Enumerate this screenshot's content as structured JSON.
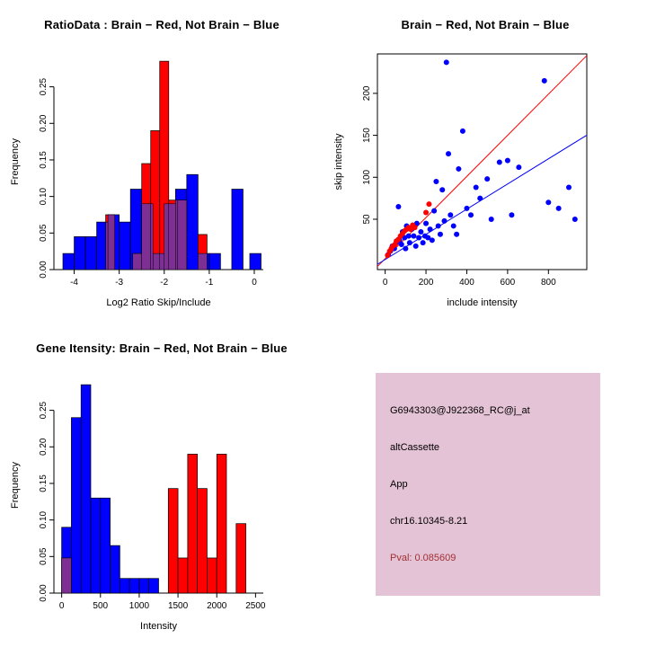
{
  "colors": {
    "blue": "#0000ff",
    "red": "#ff0000",
    "overlap": "#7d2f94",
    "axis": "#000000"
  },
  "chart_data": [
    {
      "type": "bar",
      "variant": "overlaid-histogram",
      "title": "RatioData : Brain − Red, Not Brain − Blue",
      "xlabel": "Log2 Ratio Skip/Include",
      "ylabel": "Frequency",
      "xlim": [
        -4.45,
        0.2
      ],
      "ylim": [
        0,
        0.295
      ],
      "grid": false,
      "xticks": [
        {
          "v": -4,
          "label": "-4"
        },
        {
          "v": -3,
          "label": "-3"
        },
        {
          "v": -2,
          "label": "-2"
        },
        {
          "v": -1,
          "label": "-1"
        },
        {
          "v": 0,
          "label": "0"
        }
      ],
      "yticks": [
        {
          "v": 0,
          "label": "0.00"
        },
        {
          "v": 0.05,
          "label": "0.05"
        },
        {
          "v": 0.1,
          "label": "0.10"
        },
        {
          "v": 0.15,
          "label": "0.15"
        },
        {
          "v": 0.2,
          "label": "0.20"
        },
        {
          "v": 0.25,
          "label": "0.25"
        }
      ],
      "series": [
        {
          "name": "Not Brain",
          "color": "blue",
          "bin_width": 0.25,
          "bins": [
            {
              "x": -4.25,
              "h": 0.022
            },
            {
              "x": -4.0,
              "h": 0.045
            },
            {
              "x": -3.75,
              "h": 0.045
            },
            {
              "x": -3.5,
              "h": 0.065
            },
            {
              "x": -3.25,
              "h": 0.075
            },
            {
              "x": -3.0,
              "h": 0.065
            },
            {
              "x": -2.75,
              "h": 0.11
            },
            {
              "x": -2.5,
              "h": 0.09
            },
            {
              "x": -2.25,
              "h": 0.022
            },
            {
              "x": -2.0,
              "h": 0.09
            },
            {
              "x": -1.75,
              "h": 0.11
            },
            {
              "x": -1.5,
              "h": 0.13
            },
            {
              "x": -1.25,
              "h": 0.022
            },
            {
              "x": -1.0,
              "h": 0.022
            },
            {
              "x": -0.5,
              "h": 0.11
            },
            {
              "x": -0.1,
              "h": 0.022
            }
          ]
        },
        {
          "name": "Brain",
          "color": "red",
          "bin_width": 0.2,
          "bins": [
            {
              "x": -3.3,
              "h": 0.075
            },
            {
              "x": -2.7,
              "h": 0.022
            },
            {
              "x": -2.5,
              "h": 0.145
            },
            {
              "x": -2.3,
              "h": 0.19
            },
            {
              "x": -2.1,
              "h": 0.285
            },
            {
              "x": -1.9,
              "h": 0.095
            },
            {
              "x": -1.7,
              "h": 0.095
            },
            {
              "x": -1.25,
              "h": 0.048
            }
          ]
        }
      ]
    },
    {
      "type": "scatter",
      "title": "Brain − Red, Not Brain − Blue",
      "xlabel": "include intensity",
      "ylabel": "skip intensity",
      "xlim": [
        -38,
        988
      ],
      "ylim": [
        -10,
        247
      ],
      "grid": false,
      "boxed": true,
      "xticks": [
        {
          "v": 0,
          "label": "0"
        },
        {
          "v": 200,
          "label": "200"
        },
        {
          "v": 400,
          "label": "400"
        },
        {
          "v": 600,
          "label": "600"
        },
        {
          "v": 800,
          "label": "800"
        }
      ],
      "yticks": [
        {
          "v": 50,
          "label": "50"
        },
        {
          "v": 100,
          "label": "100"
        },
        {
          "v": 150,
          "label": "150"
        },
        {
          "v": 200,
          "label": "200"
        }
      ],
      "series": [
        {
          "name": "Not Brain",
          "color": "blue",
          "points": [
            [
              15,
              8
            ],
            [
              25,
              12
            ],
            [
              35,
              18
            ],
            [
              45,
              15
            ],
            [
              55,
              22
            ],
            [
              65,
              65
            ],
            [
              70,
              25
            ],
            [
              80,
              20
            ],
            [
              85,
              35
            ],
            [
              95,
              28
            ],
            [
              100,
              15
            ],
            [
              105,
              42
            ],
            [
              115,
              30
            ],
            [
              120,
              22
            ],
            [
              130,
              38
            ],
            [
              140,
              30
            ],
            [
              150,
              18
            ],
            [
              155,
              45
            ],
            [
              165,
              28
            ],
            [
              175,
              35
            ],
            [
              185,
              22
            ],
            [
              195,
              30
            ],
            [
              200,
              45
            ],
            [
              210,
              28
            ],
            [
              220,
              38
            ],
            [
              230,
              25
            ],
            [
              240,
              60
            ],
            [
              250,
              95
            ],
            [
              260,
              42
            ],
            [
              270,
              32
            ],
            [
              280,
              85
            ],
            [
              290,
              48
            ],
            [
              300,
              237
            ],
            [
              310,
              128
            ],
            [
              320,
              55
            ],
            [
              335,
              42
            ],
            [
              350,
              32
            ],
            [
              360,
              110
            ],
            [
              380,
              155
            ],
            [
              400,
              63
            ],
            [
              420,
              55
            ],
            [
              445,
              88
            ],
            [
              465,
              75
            ],
            [
              500,
              98
            ],
            [
              520,
              50
            ],
            [
              560,
              118
            ],
            [
              600,
              120
            ],
            [
              620,
              55
            ],
            [
              655,
              112
            ],
            [
              780,
              215
            ],
            [
              800,
              70
            ],
            [
              850,
              63
            ],
            [
              900,
              88
            ],
            [
              930,
              50
            ]
          ]
        },
        {
          "name": "Brain",
          "color": "red",
          "points": [
            [
              12,
              7
            ],
            [
              22,
              12
            ],
            [
              30,
              15
            ],
            [
              38,
              18
            ],
            [
              48,
              20
            ],
            [
              55,
              24
            ],
            [
              65,
              26
            ],
            [
              75,
              30
            ],
            [
              85,
              33
            ],
            [
              95,
              36
            ],
            [
              105,
              38
            ],
            [
              115,
              40
            ],
            [
              125,
              38
            ],
            [
              135,
              43
            ],
            [
              145,
              40
            ],
            [
              200,
              58
            ],
            [
              215,
              68
            ]
          ]
        }
      ],
      "lines": [
        {
          "color": "red",
          "intercept": 3,
          "slope": 0.245
        },
        {
          "color": "blue",
          "intercept": 2,
          "slope": 0.15
        }
      ]
    },
    {
      "type": "bar",
      "variant": "overlaid-histogram",
      "title": "Gene Itensity: Brain − Red, Not Brain − Blue",
      "xlabel": "Intensity",
      "ylabel": "Frequency",
      "xlim": [
        -100,
        2600
      ],
      "ylim": [
        0,
        0.295
      ],
      "grid": false,
      "xticks": [
        {
          "v": 0,
          "label": "0"
        },
        {
          "v": 500,
          "label": "500"
        },
        {
          "v": 1000,
          "label": "1000"
        },
        {
          "v": 1500,
          "label": "1500"
        },
        {
          "v": 2000,
          "label": "2000"
        },
        {
          "v": 2500,
          "label": "2500"
        }
      ],
      "yticks": [
        {
          "v": 0,
          "label": "0.00"
        },
        {
          "v": 0.05,
          "label": "0.05"
        },
        {
          "v": 0.1,
          "label": "0.10"
        },
        {
          "v": 0.15,
          "label": "0.15"
        },
        {
          "v": 0.2,
          "label": "0.20"
        },
        {
          "v": 0.25,
          "label": "0.25"
        }
      ],
      "series": [
        {
          "name": "Not Brain",
          "color": "blue",
          "bin_width": 125,
          "bins": [
            {
              "x": 0,
              "h": 0.09
            },
            {
              "x": 125,
              "h": 0.24
            },
            {
              "x": 250,
              "h": 0.285
            },
            {
              "x": 375,
              "h": 0.13
            },
            {
              "x": 500,
              "h": 0.13
            },
            {
              "x": 625,
              "h": 0.065
            },
            {
              "x": 750,
              "h": 0.02
            },
            {
              "x": 875,
              "h": 0.02
            },
            {
              "x": 1000,
              "h": 0.02
            },
            {
              "x": 1125,
              "h": 0.02
            }
          ]
        },
        {
          "name": "Brain",
          "color": "red",
          "bin_width": 125,
          "bins": [
            {
              "x": 0,
              "h": 0.048
            },
            {
              "x": 1375,
              "h": 0.143
            },
            {
              "x": 1500,
              "h": 0.048
            },
            {
              "x": 1625,
              "h": 0.19
            },
            {
              "x": 1750,
              "h": 0.143
            },
            {
              "x": 1875,
              "h": 0.048
            },
            {
              "x": 2000,
              "h": 0.19
            },
            {
              "x": 2250,
              "h": 0.095
            }
          ]
        }
      ]
    }
  ],
  "info_panel": {
    "bg_color": "#e5c3d6",
    "lines": [
      {
        "text": "G6943303@J922368_RC@j_at",
        "color": "#000000"
      },
      {
        "text": "altCassette",
        "color": "#000000"
      },
      {
        "text": "App",
        "color": "#000000"
      },
      {
        "text": "chr16.10345-8.21",
        "color": "#000000"
      },
      {
        "text": "Pval: 0.085609",
        "color": "#a03033"
      }
    ]
  }
}
